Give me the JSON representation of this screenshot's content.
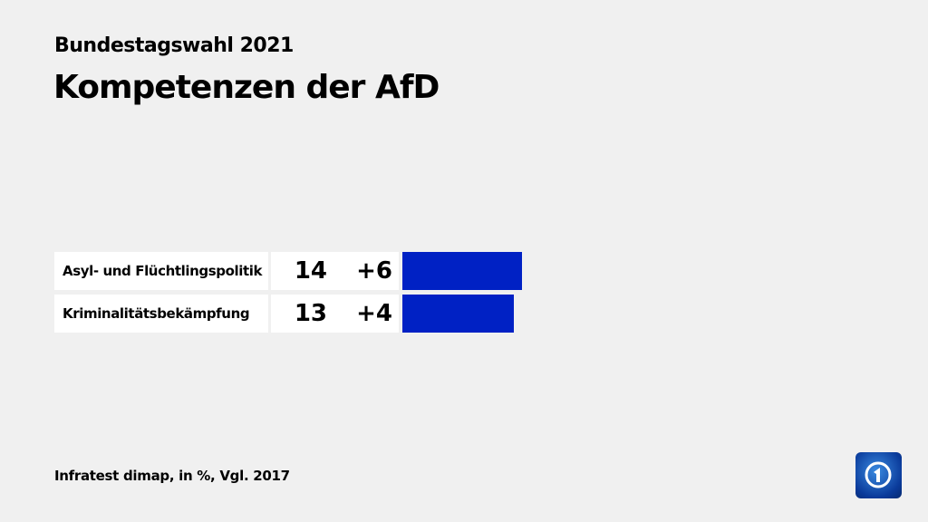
{
  "header": {
    "subtitle": "Bundestagswahl 2021",
    "title": "Kompetenzen der AfD"
  },
  "chart_data": {
    "type": "bar",
    "orientation": "horizontal",
    "categories": [
      "Asyl- und Flüchtlingspolitik",
      "Kriminalitätsbekämpfung"
    ],
    "values": [
      14,
      13
    ],
    "diffs": [
      "+6",
      "+4"
    ],
    "bar_color": "#0021c4",
    "grid": false
  },
  "footer": {
    "source": "Infratest dimap, in %, Vgl. 2017"
  },
  "logo": {
    "icon": "tagesschau-logo",
    "color": "#0a3a9a"
  }
}
